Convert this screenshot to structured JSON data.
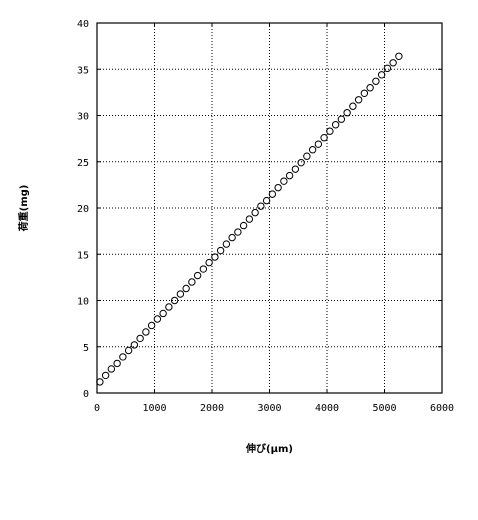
{
  "chart_data": {
    "type": "scatter",
    "title": "",
    "xlabel": "伸び(μm)",
    "ylabel": "荷重(mg)",
    "xlim": [
      0,
      6000
    ],
    "ylim": [
      0,
      40
    ],
    "xticks": [
      "0",
      "1000",
      "2000",
      "3000",
      "4000",
      "5000",
      "6000"
    ],
    "yticks": [
      "0",
      "5",
      "10",
      "15",
      "20",
      "25",
      "30",
      "35",
      "40"
    ],
    "grid": true,
    "series": [
      {
        "marker": "open-circle",
        "x": [
          50,
          150,
          250,
          350,
          450,
          550,
          650,
          750,
          850,
          950,
          1050,
          1150,
          1250,
          1350,
          1450,
          1550,
          1650,
          1750,
          1850,
          1950,
          2050,
          2150,
          2250,
          2350,
          2450,
          2550,
          2650,
          2750,
          2850,
          2950,
          3050,
          3150,
          3250,
          3350,
          3450,
          3550,
          3650,
          3750,
          3850,
          3950,
          4050,
          4150,
          4250,
          4350,
          4450,
          4550,
          4650,
          4750,
          4850,
          4950,
          5050,
          5150,
          5250
        ],
        "y": [
          1.2,
          1.9,
          2.6,
          3.2,
          3.9,
          4.6,
          5.2,
          5.9,
          6.6,
          7.3,
          8.0,
          8.6,
          9.3,
          10.0,
          10.7,
          11.3,
          12.0,
          12.7,
          13.4,
          14.1,
          14.7,
          15.4,
          16.1,
          16.8,
          17.4,
          18.1,
          18.8,
          19.5,
          20.2,
          20.8,
          21.5,
          22.2,
          22.9,
          23.5,
          24.2,
          24.9,
          25.6,
          26.3,
          26.9,
          27.6,
          28.3,
          29.0,
          29.6,
          30.3,
          31.0,
          31.7,
          32.4,
          33.0,
          33.7,
          34.4,
          35.1,
          35.7,
          36.4
        ]
      }
    ]
  }
}
